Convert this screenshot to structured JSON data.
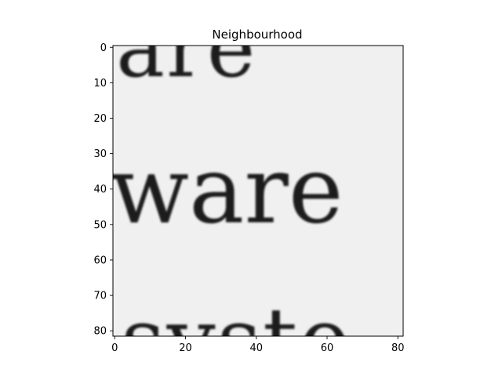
{
  "chart_data": {
    "type": "heatmap",
    "title": "Neighbourhood",
    "colormap": "gray",
    "xlabel": "",
    "ylabel": "",
    "xlim": [
      -0.5,
      81.5
    ],
    "ylim": [
      81.5,
      -0.5
    ],
    "xticks": [
      0,
      20,
      40,
      60,
      80
    ],
    "yticks": [
      0,
      10,
      20,
      30,
      40,
      50,
      60,
      70,
      80
    ],
    "grid": false,
    "image_text_lines": [
      "are",
      "ware",
      "syste"
    ],
    "background_color": "#f0f0f0",
    "ink_color": "#1a1a1a"
  }
}
